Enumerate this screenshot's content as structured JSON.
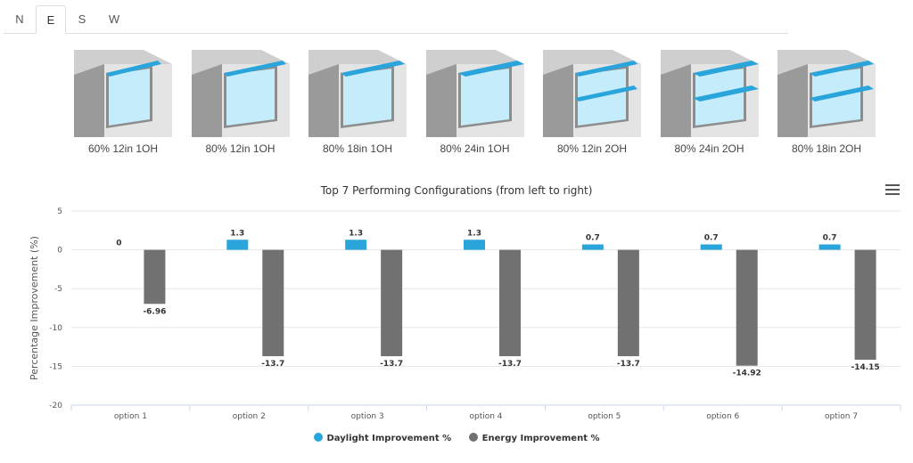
{
  "tabs": [
    {
      "label": "N",
      "active": false
    },
    {
      "label": "E",
      "active": true
    },
    {
      "label": "S",
      "active": false
    },
    {
      "label": "W",
      "active": false
    }
  ],
  "configurations": [
    {
      "label": "60% 12in 1OH",
      "glazing": 60,
      "overhang_depth_in": 12,
      "overhang_count": 1
    },
    {
      "label": "80% 12in 1OH",
      "glazing": 80,
      "overhang_depth_in": 12,
      "overhang_count": 1
    },
    {
      "label": "80% 18in 1OH",
      "glazing": 80,
      "overhang_depth_in": 18,
      "overhang_count": 1
    },
    {
      "label": "80% 24in 1OH",
      "glazing": 80,
      "overhang_depth_in": 24,
      "overhang_count": 1
    },
    {
      "label": "80% 12in 2OH",
      "glazing": 80,
      "overhang_depth_in": 12,
      "overhang_count": 2
    },
    {
      "label": "80% 24in 2OH",
      "glazing": 80,
      "overhang_depth_in": 24,
      "overhang_count": 2
    },
    {
      "label": "80% 18in 2OH",
      "glazing": 80,
      "overhang_depth_in": 18,
      "overhang_count": 2
    }
  ],
  "colors": {
    "daylight": "#2aa5dc",
    "energy": "#717171",
    "glass": "#c5ecfb",
    "overhang": "#2aa5dc",
    "wall_light": "#e4e4e4",
    "wall_dark": "#9a9a9a"
  },
  "chart_data": {
    "type": "bar",
    "title": "Top 7 Performing Configurations (from left to right)",
    "xlabel": "",
    "ylabel": "Percentage Improvement (%)",
    "ylim": [
      -20,
      5
    ],
    "yticks": [
      5,
      0,
      -5,
      -10,
      -15,
      -20
    ],
    "grid": true,
    "legend_position": "bottom",
    "categories": [
      "option 1",
      "option 2",
      "option 3",
      "option 4",
      "option 5",
      "option 6",
      "option 7"
    ],
    "series": [
      {
        "name": "Daylight Improvement %",
        "color": "#2aa5dc",
        "values": [
          0,
          1.3,
          1.3,
          1.3,
          0.7,
          0.7,
          0.7
        ],
        "labels": [
          "0",
          "1.3",
          "1.3",
          "1.3",
          "0.7",
          "0.7",
          "0.7"
        ]
      },
      {
        "name": "Energy Improvement %",
        "color": "#717171",
        "values": [
          -6.96,
          -13.7,
          -13.7,
          -13.7,
          -13.7,
          -14.92,
          -14.15
        ],
        "labels": [
          "-6.96",
          "-13.7",
          "-13.7",
          "-13.7",
          "-13.7",
          "-14.92",
          "-14.15"
        ]
      }
    ]
  }
}
